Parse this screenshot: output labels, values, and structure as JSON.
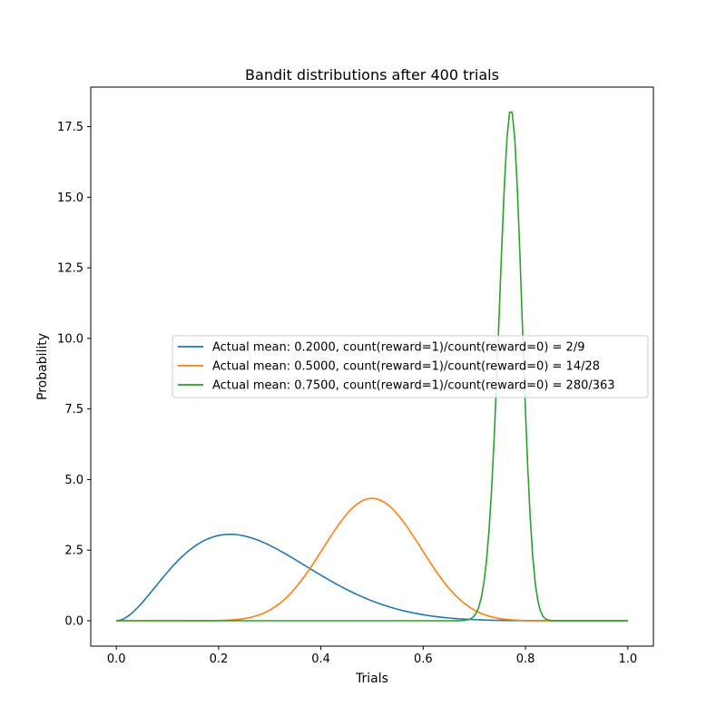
{
  "chart_data": {
    "type": "line",
    "title": "Bandit distributions after 400 trials",
    "xlabel": "Trials",
    "ylabel": "Probability",
    "xlim": [
      -0.05,
      1.05
    ],
    "ylim": [
      -0.9,
      18.9
    ],
    "xticks": [
      0.0,
      0.2,
      0.4,
      0.6,
      0.8,
      1.0
    ],
    "xtick_labels": [
      "0.0",
      "0.2",
      "0.4",
      "0.6",
      "0.8",
      "1.0"
    ],
    "yticks": [
      0.0,
      2.5,
      5.0,
      7.5,
      10.0,
      12.5,
      15.0,
      17.5
    ],
    "ytick_labels": [
      "0.0",
      "2.5",
      "5.0",
      "7.5",
      "10.0",
      "12.5",
      "15.0",
      "17.5"
    ],
    "grid": false,
    "legend_position": "center-right",
    "series": [
      {
        "name": "Actual mean: 0.2000, count(reward=1)/count(reward=0) = 2/9",
        "color": "#1f77b4",
        "distribution": "beta",
        "alpha": 3,
        "beta": 8
      },
      {
        "name": "Actual mean: 0.5000, count(reward=1)/count(reward=0) = 14/28",
        "color": "#ff7f0e",
        "distribution": "beta",
        "alpha": 15,
        "beta": 15
      },
      {
        "name": "Actual mean: 0.7500, count(reward=1)/count(reward=0) = 280/363",
        "color": "#2ca02c",
        "distribution": "beta",
        "alpha": 281,
        "beta": 84
      }
    ]
  }
}
